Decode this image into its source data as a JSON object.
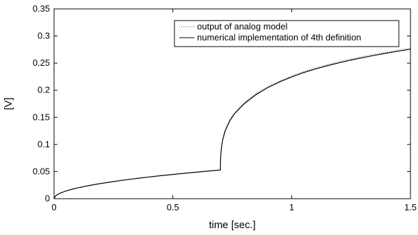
{
  "chart_data": {
    "type": "line",
    "title": "",
    "xlabel": "time [sec.]",
    "ylabel": "[V]",
    "xlim": [
      0,
      1.5
    ],
    "ylim": [
      0,
      0.35
    ],
    "x_ticks": [
      "0",
      "0.5",
      "1",
      "1.5"
    ],
    "y_ticks": [
      "0",
      "0.05",
      "0.1",
      "0.15",
      "0.2",
      "0.25",
      "0.3",
      "0.35"
    ],
    "grid": false,
    "legend_position": "top-right",
    "series": [
      {
        "name": "output of analog model",
        "style": "dotted",
        "color": "#555555",
        "x": [
          0,
          0.005,
          0.01,
          0.02,
          0.03,
          0.05,
          0.08,
          0.1,
          0.15,
          0.2,
          0.25,
          0.3,
          0.35,
          0.4,
          0.45,
          0.5,
          0.55,
          0.6,
          0.65,
          0.7,
          0.7,
          0.701,
          0.703,
          0.705,
          0.71,
          0.72,
          0.74,
          0.76,
          0.8,
          0.85,
          0.9,
          0.95,
          1.0,
          1.05,
          1.1,
          1.15,
          1.2,
          1.25,
          1.3,
          1.35,
          1.4,
          1.45,
          1.5
        ],
        "y": [
          0,
          0.0045,
          0.0063,
          0.009,
          0.011,
          0.0142,
          0.018,
          0.02,
          0.0245,
          0.0283,
          0.0316,
          0.0347,
          0.0374,
          0.04,
          0.0425,
          0.0447,
          0.0469,
          0.049,
          0.051,
          0.053,
          0.053,
          0.0755,
          0.089,
          0.098,
          0.111,
          0.127,
          0.146,
          0.159,
          0.177,
          0.194,
          0.207,
          0.2175,
          0.2265,
          0.2345,
          0.2412,
          0.2473,
          0.2527,
          0.2577,
          0.2622,
          0.2665,
          0.2705,
          0.2742,
          0.2777
        ]
      },
      {
        "name": "numerical implementation of 4th definition",
        "style": "solid",
        "color": "#000000",
        "x": [
          0,
          0.005,
          0.01,
          0.02,
          0.03,
          0.05,
          0.08,
          0.1,
          0.15,
          0.2,
          0.25,
          0.3,
          0.35,
          0.4,
          0.45,
          0.5,
          0.55,
          0.6,
          0.65,
          0.7,
          0.7,
          0.701,
          0.703,
          0.705,
          0.71,
          0.72,
          0.74,
          0.76,
          0.8,
          0.85,
          0.9,
          0.95,
          1.0,
          1.05,
          1.1,
          1.15,
          1.2,
          1.25,
          1.3,
          1.35,
          1.4,
          1.45,
          1.5
        ],
        "y": [
          0,
          0.0045,
          0.0063,
          0.009,
          0.011,
          0.0142,
          0.018,
          0.02,
          0.0245,
          0.0283,
          0.0316,
          0.0347,
          0.0374,
          0.04,
          0.0425,
          0.0447,
          0.0469,
          0.049,
          0.051,
          0.053,
          0.053,
          0.0745,
          0.0875,
          0.0965,
          0.109,
          0.125,
          0.144,
          0.157,
          0.175,
          0.192,
          0.205,
          0.2155,
          0.2245,
          0.2325,
          0.2392,
          0.2453,
          0.2507,
          0.2557,
          0.2602,
          0.2645,
          0.2685,
          0.2722,
          0.2757
        ]
      }
    ]
  }
}
